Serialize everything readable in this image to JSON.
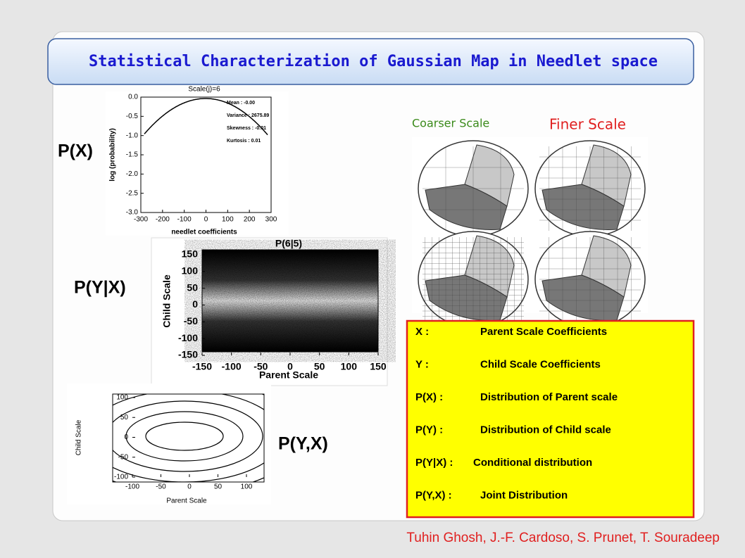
{
  "title": "Statistical Characterization of Gaussian Map in Needlet space",
  "labels": {
    "px": "P(X)",
    "pyx": "P(Y|X)",
    "pjoint": "P(Y,X)"
  },
  "plot_px": {
    "title": "Scale(j)=6",
    "stats": [
      "Mean : -0.00",
      "Variance : 2675.89",
      "Skewness : -0.01",
      "Kurtosis : 0.01"
    ],
    "y_label": "log (probability)",
    "x_label": "needlet coefficients",
    "yticks": [
      "0.0",
      "-0.5",
      "-1.0",
      "-1.5",
      "-2.0",
      "-2.5",
      "-3.0"
    ],
    "xticks": [
      "-300",
      "-200",
      "-100",
      "0",
      "100",
      "200",
      "300"
    ]
  },
  "plot_cond": {
    "title": "P(6|5)",
    "y_label": "Child Scale",
    "x_label": "Parent Scale",
    "yticks": [
      "150",
      "100",
      "50",
      "0",
      "-50",
      "-100",
      "-150"
    ],
    "xticks": [
      "-150",
      "-100",
      "-50",
      "0",
      "50",
      "100",
      "150"
    ]
  },
  "plot_joint": {
    "y_label": "Child Scale",
    "x_label": "Parent Scale",
    "yticks": [
      "100",
      "50",
      "0",
      "-50",
      "-100"
    ],
    "xticks": [
      "-100",
      "-50",
      "0",
      "50",
      "100"
    ]
  },
  "scales": {
    "coarser": "Coarser Scale",
    "finer": "Finer Scale"
  },
  "legend": [
    {
      "term": "X   :",
      "desc": "Parent Scale Coefficients"
    },
    {
      "term": "Y   :",
      "desc": "Child Scale Coefficients"
    },
    {
      "term": "P(X) :",
      "desc": "Distribution of Parent scale"
    },
    {
      "term": "P(Y) :",
      "desc": "Distribution of Child scale"
    },
    {
      "term": "P(Y|X) :",
      "desc": "Conditional distribution"
    },
    {
      "term": "P(Y,X) :",
      "desc": "Joint Distribution"
    }
  ],
  "authors": "Tuhin Ghosh, J.-F. Cardoso, S. Prunet, T. Souradeep"
}
